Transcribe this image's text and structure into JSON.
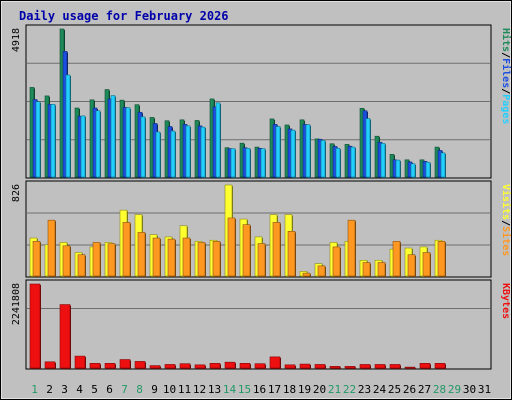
{
  "chart_data": {
    "type": "bar",
    "title": "Daily usage for February 2026",
    "categories": [
      "1",
      "2",
      "3",
      "4",
      "5",
      "6",
      "7",
      "8",
      "9",
      "10",
      "11",
      "12",
      "13",
      "14",
      "15",
      "16",
      "17",
      "18",
      "19",
      "20",
      "21",
      "22",
      "23",
      "24",
      "25",
      "26",
      "27",
      "28",
      "29",
      "30",
      "31"
    ],
    "weekend_days": [
      1,
      7,
      8,
      14,
      15,
      21,
      22,
      28,
      29
    ],
    "colors": {
      "hits": "#1e8a5a",
      "files": "#1c4fe0",
      "pages": "#22d0ff",
      "visits": "#ffff30",
      "sites": "#ff9820",
      "kbytes": "#ee1010",
      "title": "#0000aa",
      "weekend": "#229966",
      "panel": "#c0c0c0",
      "grid": "#6e6e6e"
    },
    "panels": [
      {
        "id": "hits",
        "ylabel": {
          "parts": [
            "Pages",
            "/",
            "Files",
            "/",
            "Hits"
          ],
          "colors": [
            "#22d0ff",
            "#000000",
            "#1c4fe0",
            "#000000",
            "#1e8a5a"
          ]
        },
        "ymax_label": "4918",
        "ylim": [
          0,
          4918
        ],
        "series": [
          {
            "name": "Hits",
            "values": [
              2990,
              2710,
              4918,
              2310,
              2580,
              2920,
              2570,
              2420,
              2000,
              1890,
              1920,
              1900,
              2610,
              1000,
              1150,
              1020,
              1950,
              1750,
              1920,
              1290,
              1130,
              1110,
              2300,
              1380,
              780,
              600,
              600,
              1020,
              0,
              0,
              0
            ]
          },
          {
            "name": "Files",
            "values": [
              2590,
              2430,
              4180,
              2040,
              2310,
              2610,
              2330,
              2170,
              1800,
              1700,
              1770,
              1720,
              2350,
              970,
              1000,
              980,
              1770,
              1620,
              1770,
              1280,
              1040,
              1050,
              2220,
              1180,
              600,
              530,
              550,
              910,
              0,
              0,
              0
            ]
          },
          {
            "name": "Pages",
            "values": [
              2520,
              2430,
              3400,
              2050,
              2220,
              2720,
              2320,
              2020,
              1520,
              1550,
              1720,
              1680,
              2480,
              970,
              980,
              970,
              1700,
              1580,
              1760,
              1240,
              980,
              1020,
              1960,
              1140,
              590,
              470,
              520,
              830,
              0,
              0,
              0
            ]
          }
        ]
      },
      {
        "id": "visits",
        "ylabel": {
          "parts": [
            "Sites",
            "/",
            "Visits"
          ],
          "colors": [
            "#ff9820",
            "#000000",
            "#ffff30"
          ]
        },
        "ymax_label": "826",
        "ylim": [
          0,
          826
        ],
        "series": [
          {
            "name": "Visits",
            "values": [
              350,
              290,
              310,
              220,
              270,
              310,
              600,
              560,
              380,
              360,
              460,
              320,
              330,
              826,
              520,
              360,
              560,
              560,
              50,
              120,
              310,
              320,
              150,
              150,
              250,
              260,
              270,
              330,
              0,
              0,
              0
            ]
          },
          {
            "name": "Sites",
            "values": [
              320,
              510,
              280,
              200,
              310,
              300,
              490,
              400,
              350,
              340,
              350,
              310,
              320,
              530,
              470,
              300,
              490,
              410,
              35,
              100,
              270,
              510,
              130,
              130,
              320,
              200,
              220,
              320,
              0,
              0,
              0
            ]
          }
        ]
      },
      {
        "id": "kbytes",
        "ylabel": {
          "parts": [
            "KBytes"
          ],
          "colors": [
            "#ee1010"
          ]
        },
        "ymax_label": "2241808",
        "ylim": [
          0,
          2241808
        ],
        "series": [
          {
            "name": "KBytes",
            "values": [
              2241808,
              190000,
              1700000,
              340000,
              150000,
              150000,
              250000,
              200000,
              90000,
              120000,
              140000,
              110000,
              150000,
              180000,
              150000,
              140000,
              320000,
              110000,
              130000,
              120000,
              70000,
              70000,
              120000,
              120000,
              120000,
              50000,
              150000,
              150000,
              0,
              0,
              0
            ]
          }
        ]
      }
    ]
  }
}
